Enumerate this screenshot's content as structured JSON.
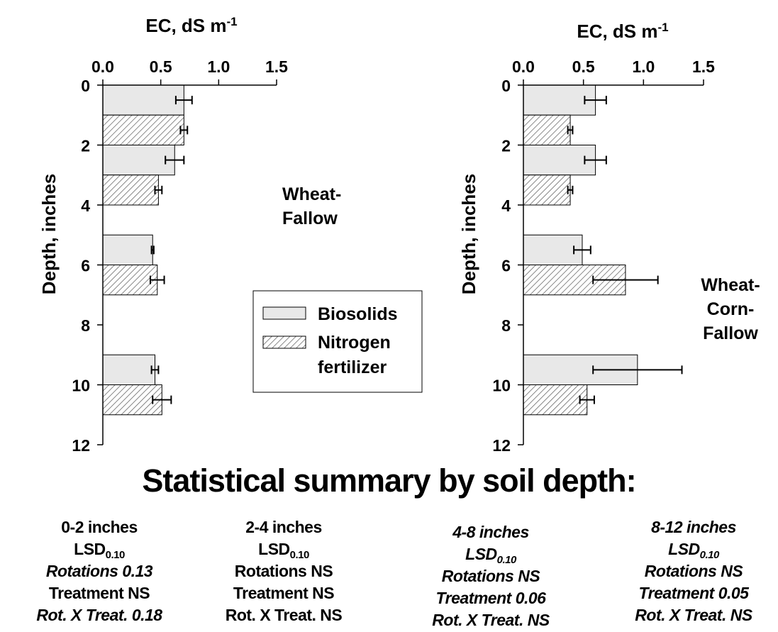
{
  "chart_data": [
    {
      "type": "bar",
      "orientation": "horizontal",
      "title": "",
      "xlabel": "EC, dS m",
      "xlabel_sup": "-1",
      "ylabel": "Depth, inches",
      "xlim": [
        0,
        1.5
      ],
      "ylim": [
        0,
        12
      ],
      "x_ticks": [
        "0.0",
        "0.5",
        "1.0",
        "1.5"
      ],
      "y_ticks": [
        "0",
        "2",
        "4",
        "6",
        "8",
        "10",
        "12"
      ],
      "label_lines": [
        "Wheat-",
        "Fallow"
      ],
      "bars": [
        {
          "series": "Biosolids",
          "depth_top": 0,
          "depth_bottom": 1,
          "value": 0.7,
          "error": 0.07
        },
        {
          "series": "Nitrogen fertilizer",
          "depth_top": 1,
          "depth_bottom": 2,
          "value": 0.7,
          "error": 0.03
        },
        {
          "series": "Biosolids",
          "depth_top": 2,
          "depth_bottom": 3,
          "value": 0.62,
          "error": 0.08
        },
        {
          "series": "Nitrogen fertilizer",
          "depth_top": 3,
          "depth_bottom": 4,
          "value": 0.48,
          "error": 0.03
        },
        {
          "series": "Biosolids",
          "depth_top": 5,
          "depth_bottom": 6,
          "value": 0.43,
          "error": 0.01
        },
        {
          "series": "Nitrogen fertilizer",
          "depth_top": 6,
          "depth_bottom": 7,
          "value": 0.47,
          "error": 0.06
        },
        {
          "series": "Biosolids",
          "depth_top": 9,
          "depth_bottom": 10,
          "value": 0.45,
          "error": 0.03
        },
        {
          "series": "Nitrogen fertilizer",
          "depth_top": 10,
          "depth_bottom": 11,
          "value": 0.51,
          "error": 0.08
        }
      ]
    },
    {
      "type": "bar",
      "orientation": "horizontal",
      "title": "",
      "xlabel": "EC, dS m",
      "xlabel_sup": "-1",
      "ylabel": "Depth, inches",
      "xlim": [
        0,
        1.5
      ],
      "ylim": [
        0,
        12
      ],
      "x_ticks": [
        "0.0",
        "0.5",
        "1.0",
        "1.5"
      ],
      "y_ticks": [
        "0",
        "2",
        "4",
        "6",
        "8",
        "10",
        "12"
      ],
      "label_lines": [
        "Wheat-",
        "Corn-",
        "Fallow"
      ],
      "bars": [
        {
          "series": "Biosolids",
          "depth_top": 0,
          "depth_bottom": 1,
          "value": 0.6,
          "error": 0.09
        },
        {
          "series": "Nitrogen fertilizer",
          "depth_top": 1,
          "depth_bottom": 2,
          "value": 0.39,
          "error": 0.02
        },
        {
          "series": "Biosolids",
          "depth_top": 2,
          "depth_bottom": 3,
          "value": 0.6,
          "error": 0.09
        },
        {
          "series": "Nitrogen fertilizer",
          "depth_top": 3,
          "depth_bottom": 4,
          "value": 0.39,
          "error": 0.02
        },
        {
          "series": "Biosolids",
          "depth_top": 5,
          "depth_bottom": 6,
          "value": 0.49,
          "error": 0.07
        },
        {
          "series": "Nitrogen fertilizer",
          "depth_top": 6,
          "depth_bottom": 7,
          "value": 0.85,
          "error": 0.27
        },
        {
          "series": "Biosolids",
          "depth_top": 9,
          "depth_bottom": 10,
          "value": 0.95,
          "error": 0.37
        },
        {
          "series": "Nitrogen fertilizer",
          "depth_top": 10,
          "depth_bottom": 11,
          "value": 0.53,
          "error": 0.06
        }
      ]
    }
  ],
  "legend": {
    "entries": [
      {
        "line1": "Biosolids",
        "line2": "",
        "pattern": "plain",
        "fill": "#e8e8e8"
      },
      {
        "line1": "Nitrogen",
        "line2": "fertilizer",
        "pattern": "hatched",
        "fill": "#ffffff"
      }
    ]
  },
  "summary": {
    "title": "Statistical summary by soil depth:",
    "columns": [
      {
        "heading": "0-2 inches",
        "heading_italic": false,
        "lsd": "LSD",
        "lsd_sub": "0.10",
        "lsd_italic": false,
        "rows": [
          {
            "text": "Rotations 0.13",
            "italic": true
          },
          {
            "text": "Treatment  NS",
            "italic": false
          },
          {
            "text": "Rot. X Treat.  0.18",
            "italic": true
          }
        ]
      },
      {
        "heading": "2-4 inches",
        "heading_italic": false,
        "lsd": "LSD",
        "lsd_sub": "0.10",
        "lsd_italic": false,
        "rows": [
          {
            "text": "Rotations NS",
            "italic": false
          },
          {
            "text": "Treatment  NS",
            "italic": false
          },
          {
            "text": "Rot. X Treat.  NS",
            "italic": false
          }
        ]
      },
      {
        "heading": "4-8 inches",
        "heading_italic": true,
        "lsd": "LSD",
        "lsd_sub": "0.10",
        "lsd_italic": true,
        "rows": [
          {
            "text": "Rotations NS",
            "italic": true
          },
          {
            "text": "Treatment  0.06",
            "italic": true
          },
          {
            "text": "Rot. X Treat.  NS",
            "italic": true
          }
        ]
      },
      {
        "heading": "8-12 inches",
        "heading_italic": true,
        "lsd": "LSD",
        "lsd_sub": "0.10",
        "lsd_italic": true,
        "rows": [
          {
            "text": "Rotations NS",
            "italic": true
          },
          {
            "text": "Treatment  0.05",
            "italic": true
          },
          {
            "text": "Rot. X Treat.  NS",
            "italic": true
          }
        ]
      }
    ]
  }
}
